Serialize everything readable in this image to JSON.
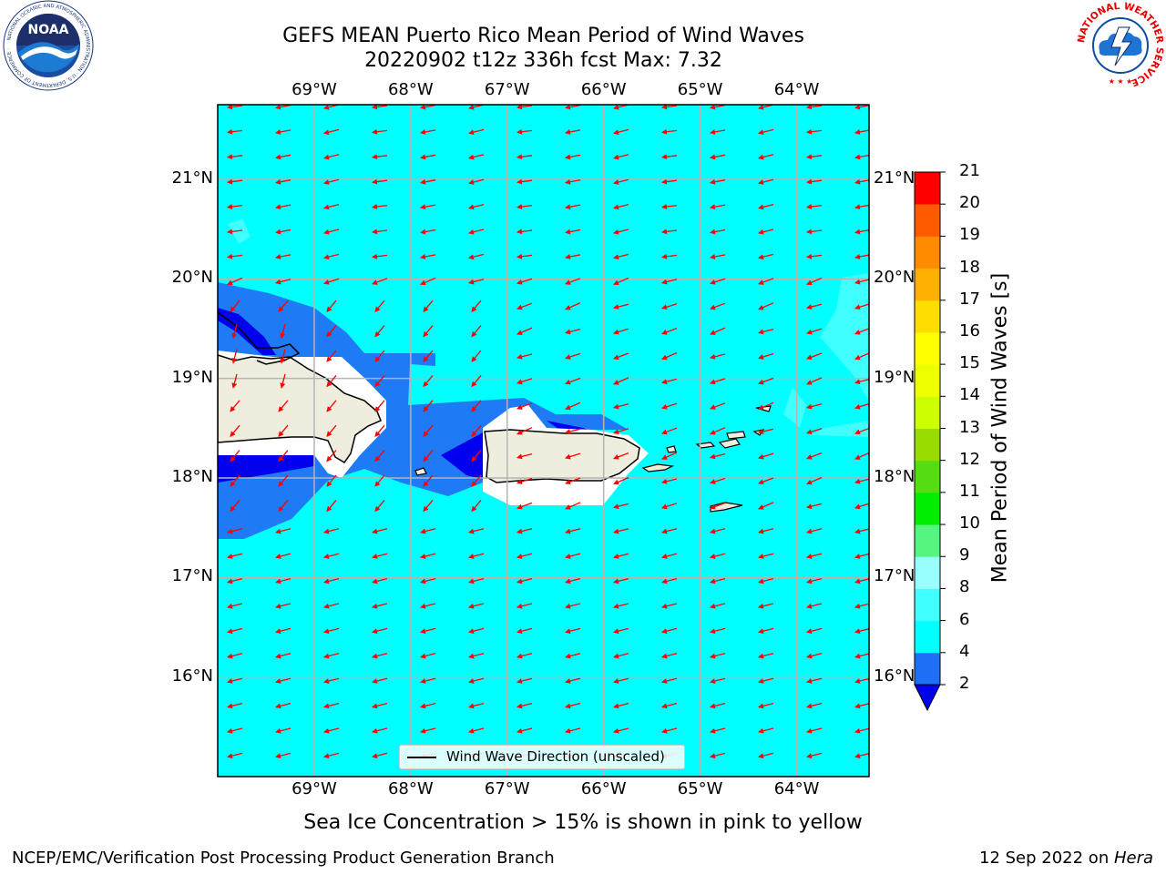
{
  "header": {
    "title_line1": "GEFS MEAN Puerto Rico Mean Period of Wind Waves",
    "title_line2": "20220902 t12z 336h fcst   Max: 7.32"
  },
  "map": {
    "lon_ticks": [
      "69°W",
      "68°W",
      "67°W",
      "66°W",
      "65°W",
      "64°W"
    ],
    "lat_ticks": [
      "21°N",
      "20°N",
      "19°N",
      "18°N",
      "17°N",
      "16°N"
    ],
    "lon_range": [
      -70.0,
      -63.25
    ],
    "lat_range": [
      15.0,
      21.75
    ],
    "ocean_color": "#00ffff",
    "land_color": "#efeddd",
    "arrow_color": "#ff0000",
    "legend_label": "Wind Wave Direction (unscaled)"
  },
  "colorbar": {
    "label": "Mean Period of Wind Waves [s]",
    "ticks": [
      "21",
      "20",
      "19",
      "18",
      "17",
      "16",
      "15",
      "14",
      "13",
      "12",
      "11",
      "10",
      "9",
      "8",
      "6",
      "4",
      "2"
    ],
    "levels": [
      2,
      4,
      6,
      8,
      9,
      10,
      11,
      12,
      13,
      14,
      15,
      16,
      17,
      18,
      19,
      20,
      21
    ],
    "colors": [
      "#1e6ff5",
      "#00ffff",
      "#40ffff",
      "#99ffff",
      "#55f57f",
      "#00ee00",
      "#55dd11",
      "#99dd00",
      "#ccff00",
      "#eeff00",
      "#ffff00",
      "#ffdd00",
      "#ffb000",
      "#ff8c00",
      "#ff5a00",
      "#ff2a00",
      "#ff0000"
    ],
    "under_color": "#0000ee"
  },
  "logos": {
    "noaa_text": "NOAA",
    "noaa_ring": "NATIONAL OCEANIC AND ATMOSPHERIC ADMINISTRATION · U.S. DEPARTMENT OF COMMERCE ·",
    "nws_ring": "NATIONAL WEATHER SERVICE"
  },
  "footer": {
    "note": "Sea Ice Concentration > 15% is shown in pink to yellow",
    "left": "NCEP/EMC/Verification Post Processing Product Generation Branch",
    "right_prefix": "12 Sep 2022 on ",
    "right_machine": "Hera"
  }
}
